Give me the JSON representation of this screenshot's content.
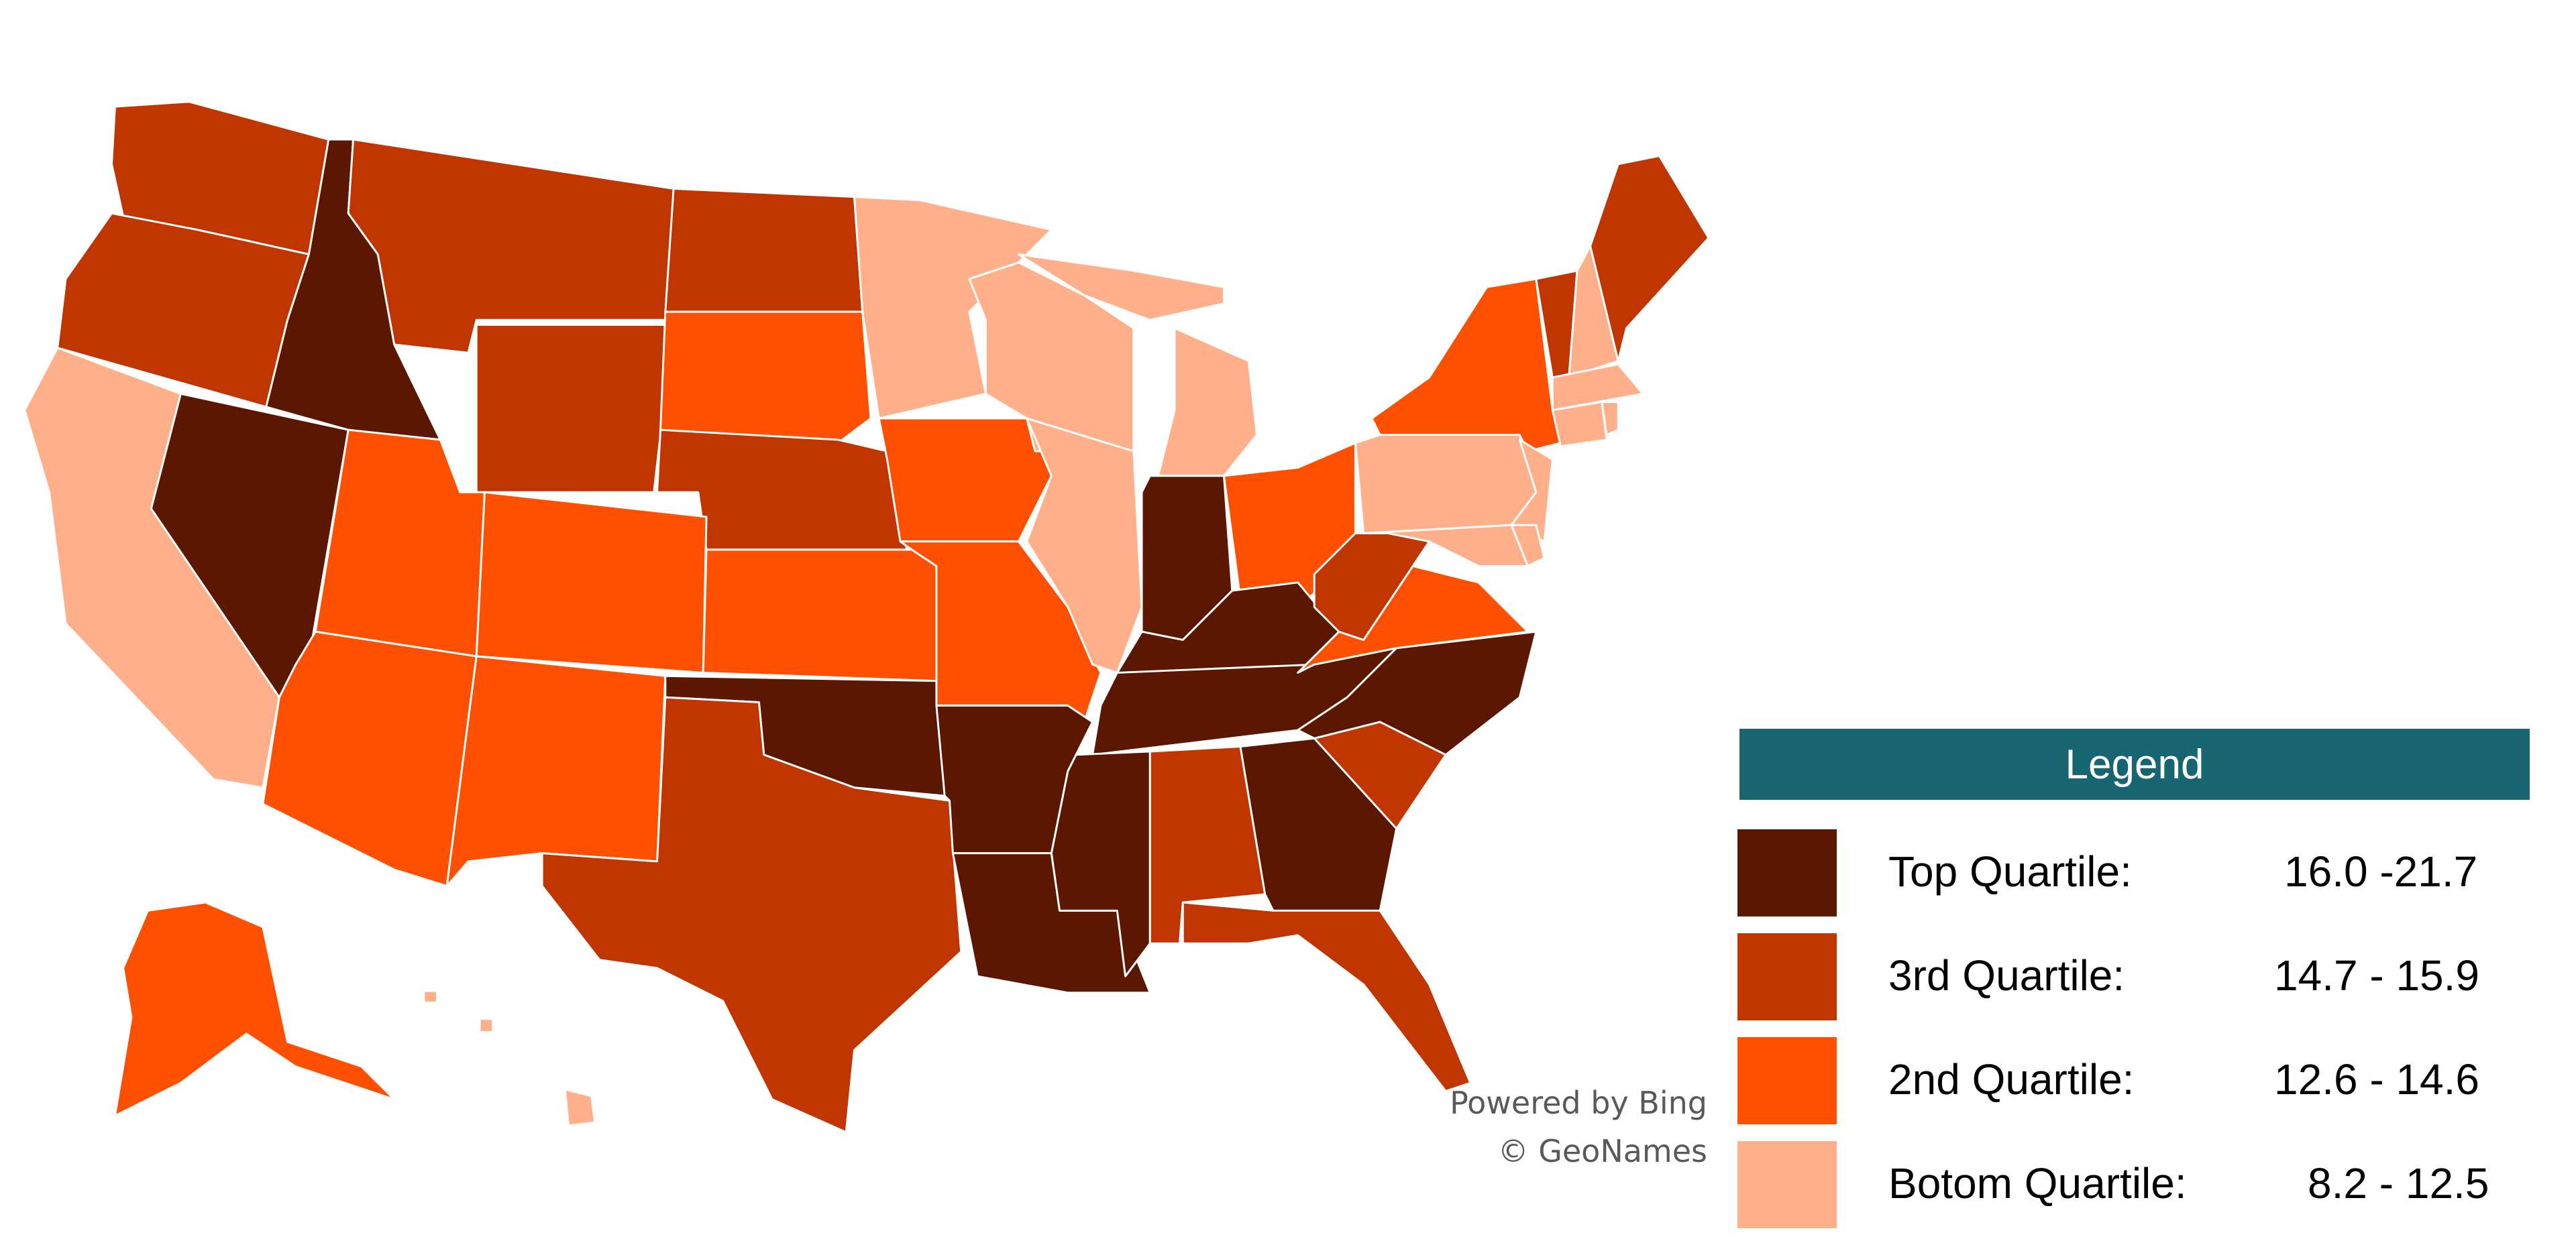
{
  "legend": {
    "title": "Legend",
    "items": [
      {
        "label": "Top Quartile:",
        "range": "16.0 -21.7",
        "color": "#5C1700"
      },
      {
        "label": "3rd Quartile:",
        "range": "14.7 - 15.9",
        "color": "#C03500"
      },
      {
        "label": "2nd Quartile:",
        "range": "12.6 - 14.6",
        "color": "#FF4F00"
      },
      {
        "label": "Botom Quartile:",
        "range": "8.2 - 12.5",
        "color": "#FFAF8A"
      }
    ]
  },
  "attribution": {
    "line1": "Powered by Bing",
    "line2": "© GeoNames"
  },
  "states": {
    "ID": 0,
    "NV": 0,
    "IN": 0,
    "KY": 0,
    "TN": 0,
    "NC": 0,
    "OK": 0,
    "AR": 0,
    "LA": 0,
    "MS": 0,
    "GA": 0,
    "WA": 1,
    "OR": 1,
    "MT": 1,
    "ND": 1,
    "WY": 1,
    "NE": 1,
    "TX": 1,
    "WV": 1,
    "AL": 1,
    "SC": 1,
    "FL": 1,
    "ME": 1,
    "VT": 1,
    "UT": 2,
    "CO": 2,
    "AZ": 2,
    "NM": 2,
    "SD": 2,
    "KS": 2,
    "IA": 2,
    "MO": 2,
    "OH": 2,
    "VA": 2,
    "NY": 2,
    "AK": 2,
    "CA": 3,
    "MN": 3,
    "WI": 3,
    "MI": 3,
    "IL": 3,
    "PA": 3,
    "NJ": 3,
    "MD": 3,
    "DE": 3,
    "MA": 3,
    "CT": 3,
    "RI": 3,
    "NH": 3,
    "HI": 3
  }
}
